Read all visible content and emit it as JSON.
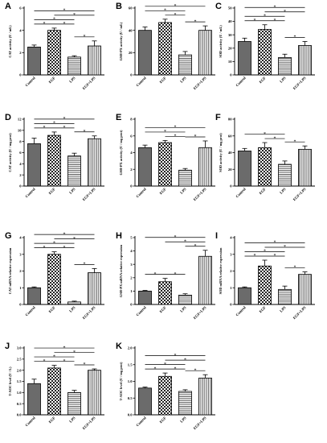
{
  "chart_data": [
    {
      "letter": "A",
      "type": "bar",
      "categories": [
        "Control",
        "EGF",
        "LPS",
        "EGF+LPS"
      ],
      "values": [
        2.5,
        4.0,
        1.6,
        2.6
      ],
      "errors": [
        0.18,
        0.2,
        0.12,
        0.45
      ],
      "ylabel": "CAT activity (U / mL)",
      "ylim": [
        0,
        6
      ],
      "yticks": [
        "0",
        "2",
        "4",
        "6"
      ],
      "brackets": [
        [
          0,
          1
        ],
        [
          1,
          2
        ],
        [
          0,
          2
        ],
        [
          0,
          3
        ],
        [
          1,
          3
        ],
        [
          2,
          3
        ]
      ]
    },
    {
      "letter": "B",
      "type": "bar",
      "categories": [
        "Control",
        "EGF",
        "LPS",
        "EGF+LPS"
      ],
      "values": [
        40,
        47,
        18,
        40
      ],
      "errors": [
        3,
        3,
        3,
        4
      ],
      "ylabel": "GSH-PX activity (U / mL)",
      "ylim": [
        0,
        60
      ],
      "yticks": [
        "0",
        "20",
        "40",
        "60"
      ],
      "brackets": [
        [
          0,
          2
        ],
        [
          1,
          2
        ],
        [
          0,
          3
        ],
        [
          2,
          3
        ]
      ]
    },
    {
      "letter": "C",
      "type": "bar",
      "categories": [
        "Control",
        "EGF",
        "LPS",
        "EGF+LPS"
      ],
      "values": [
        25,
        34,
        13,
        22
      ],
      "errors": [
        2.5,
        3.5,
        2.5,
        3
      ],
      "ylabel": "SOD activity (U / mL)",
      "ylim": [
        0,
        50
      ],
      "yticks": [
        "0",
        "10",
        "20",
        "30",
        "40",
        "50"
      ],
      "brackets": [
        [
          0,
          1
        ],
        [
          1,
          2
        ],
        [
          0,
          2
        ],
        [
          0,
          3
        ],
        [
          1,
          3
        ],
        [
          2,
          3
        ]
      ]
    },
    {
      "letter": "D",
      "type": "bar",
      "categories": [
        "Control",
        "EGF",
        "LPS",
        "EGF+LPS"
      ],
      "values": [
        7.6,
        9.1,
        5.4,
        8.5
      ],
      "errors": [
        1.0,
        0.6,
        0.5,
        0.5
      ],
      "ylabel": "CAT activity (U / mg prot)",
      "ylim": [
        0,
        12
      ],
      "yticks": [
        "0",
        "2",
        "4",
        "6",
        "8",
        "10",
        "12"
      ],
      "brackets": [
        [
          0,
          1
        ],
        [
          1,
          2
        ],
        [
          0,
          2
        ],
        [
          0,
          3
        ],
        [
          2,
          3
        ]
      ]
    },
    {
      "letter": "E",
      "type": "bar",
      "categories": [
        "Control",
        "EGF",
        "LPS",
        "EGF+LPS"
      ],
      "values": [
        4.6,
        5.2,
        1.9,
        4.6
      ],
      "errors": [
        0.3,
        0.25,
        0.2,
        0.8
      ],
      "ylabel": "GSH-PX activity (U / mg prot)",
      "ylim": [
        0,
        8
      ],
      "yticks": [
        "0",
        "2",
        "4",
        "6",
        "8"
      ],
      "brackets": [
        [
          0,
          2
        ],
        [
          1,
          2
        ],
        [
          0,
          3
        ],
        [
          2,
          3
        ]
      ]
    },
    {
      "letter": "F",
      "type": "bar",
      "categories": [
        "Control",
        "EGF",
        "LPS",
        "EGF+LPS"
      ],
      "values": [
        42,
        46,
        26,
        44
      ],
      "errors": [
        3,
        6,
        4,
        4
      ],
      "ylabel": "SOD activity (U / mg prot)",
      "ylim": [
        0,
        80
      ],
      "yticks": [
        "0",
        "20",
        "40",
        "60",
        "80"
      ],
      "brackets": [
        [
          0,
          2
        ],
        [
          1,
          2
        ],
        [
          2,
          3
        ]
      ]
    },
    {
      "letter": "G",
      "type": "bar",
      "categories": [
        "Control",
        "EGF",
        "LPS",
        "EGF+LPS"
      ],
      "values": [
        1.0,
        3.0,
        0.15,
        1.9
      ],
      "errors": [
        0.05,
        0.15,
        0.05,
        0.25
      ],
      "ylabel": "CAT mRNA relative expression",
      "ylim": [
        0,
        4
      ],
      "yticks": [
        "0",
        "1",
        "2",
        "3",
        "4"
      ],
      "brackets": [
        [
          0,
          1
        ],
        [
          1,
          2
        ],
        [
          0,
          2
        ],
        [
          0,
          3
        ],
        [
          1,
          3
        ],
        [
          2,
          3
        ]
      ]
    },
    {
      "letter": "H",
      "type": "bar",
      "categories": [
        "Control",
        "EGF",
        "LPS",
        "EGF+LPS"
      ],
      "values": [
        1.0,
        1.7,
        0.7,
        3.6
      ],
      "errors": [
        0.05,
        0.25,
        0.1,
        0.45
      ],
      "ylabel": "GSH-PX mRNA relative expression",
      "ylim": [
        0,
        5
      ],
      "yticks": [
        "0",
        "1",
        "2",
        "3",
        "4",
        "5"
      ],
      "brackets": [
        [
          0,
          1
        ],
        [
          1,
          2
        ],
        [
          0,
          3
        ],
        [
          1,
          3
        ],
        [
          2,
          3
        ]
      ]
    },
    {
      "letter": "I",
      "type": "bar",
      "categories": [
        "Control",
        "EGF",
        "LPS",
        "EGF+LPS"
      ],
      "values": [
        1.0,
        2.3,
        0.9,
        1.8
      ],
      "errors": [
        0.05,
        0.35,
        0.2,
        0.15
      ],
      "ylabel": "SOD mRNA relative expression",
      "ylim": [
        0,
        4
      ],
      "yticks": [
        "0",
        "1",
        "2",
        "3",
        "4"
      ],
      "brackets": [
        [
          0,
          1
        ],
        [
          1,
          2
        ],
        [
          0,
          2
        ],
        [
          0,
          3
        ],
        [
          1,
          3
        ],
        [
          2,
          3
        ]
      ]
    },
    {
      "letter": "J",
      "type": "bar",
      "categories": [
        "Control",
        "EGF",
        "LPS",
        "EGF+LPS"
      ],
      "values": [
        1.4,
        2.1,
        1.0,
        2.0
      ],
      "errors": [
        0.2,
        0.12,
        0.1,
        0.06
      ],
      "ylabel": "T-AOC level (U / L)",
      "ylim": [
        0,
        3
      ],
      "yticks": [
        "0.0",
        "0.5",
        "1.0",
        "1.5",
        "2.0",
        "2.5",
        "3.0"
      ],
      "brackets": [
        [
          0,
          1
        ],
        [
          1,
          2
        ],
        [
          0,
          2
        ],
        [
          0,
          3
        ],
        [
          1,
          3
        ],
        [
          2,
          3
        ]
      ]
    },
    {
      "letter": "K",
      "type": "bar",
      "categories": [
        "Control",
        "EGF",
        "LPS",
        "EGF+LPS"
      ],
      "values": [
        0.8,
        1.15,
        0.7,
        1.1
      ],
      "errors": [
        0.03,
        0.1,
        0.05,
        0.1
      ],
      "ylabel": "T-AOC level (U / mg prot)",
      "ylim": [
        0,
        2
      ],
      "yticks": [
        "0.0",
        "0.5",
        "1.0",
        "1.5",
        "2.0"
      ],
      "brackets": [
        [
          0,
          1
        ],
        [
          1,
          2
        ],
        [
          0,
          2
        ],
        [
          0,
          3
        ],
        [
          1,
          3
        ],
        [
          2,
          3
        ]
      ]
    }
  ]
}
